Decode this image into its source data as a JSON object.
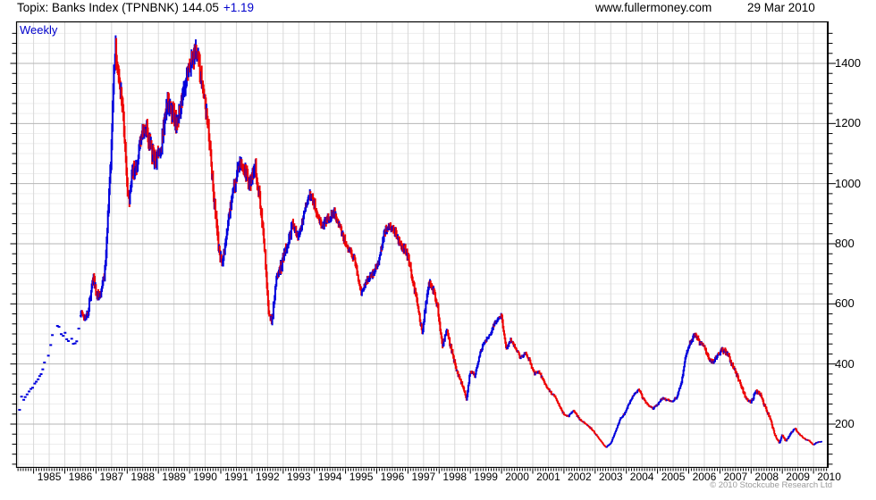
{
  "header": {
    "title": "Topix: Banks Index (TPNBNK) 144.05",
    "change": "+1.19",
    "website": "www.fullermoney.com",
    "date": "29 Mar 2010"
  },
  "chart": {
    "frequency_label": "Weekly",
    "footer_copyright": "© 2010 Stockcube Research Ltd"
  },
  "chart_data": {
    "type": "bar",
    "subtype": "weekly-high-low-range-bars",
    "title": "Topix: Banks Index (TPNBNK)",
    "last_price": 144.05,
    "change": 1.19,
    "frequency": "Weekly",
    "up_color": "#0000dd",
    "down_color": "#ee0000",
    "grid": true,
    "y_axis_side": "right",
    "y_ticks": [
      200,
      400,
      600,
      800,
      1000,
      1200,
      1400
    ],
    "y_major_step": 200,
    "y_minor_step": 33.3333,
    "ylim": [
      55,
      1540
    ],
    "x_labels": [
      "1985",
      "1986",
      "1987",
      "1988",
      "1989",
      "1990",
      "1991",
      "1992",
      "1993",
      "1994",
      "1995",
      "1996",
      "1997",
      "1998",
      "1999",
      "2000",
      "2001",
      "2002",
      "2003",
      "2004",
      "2005",
      "2006",
      "2007",
      "2008",
      "2009",
      "2010"
    ],
    "x_range_years": [
      1984.3,
      2010.45
    ],
    "x_data_start": 1984.55,
    "x_data_end": 2010.27,
    "sparse_until_year": 1986.5,
    "keypoints": [
      [
        1984.55,
        245
      ],
      [
        1984.62,
        300
      ],
      [
        1984.7,
        280
      ],
      [
        1984.78,
        297
      ],
      [
        1984.9,
        312
      ],
      [
        1985.0,
        330
      ],
      [
        1985.12,
        350
      ],
      [
        1985.24,
        362
      ],
      [
        1985.34,
        402
      ],
      [
        1985.44,
        412
      ],
      [
        1985.54,
        462
      ],
      [
        1985.62,
        505
      ],
      [
        1985.7,
        527
      ],
      [
        1985.82,
        520
      ],
      [
        1985.92,
        490
      ],
      [
        1986.0,
        500
      ],
      [
        1986.12,
        473
      ],
      [
        1986.2,
        488
      ],
      [
        1986.28,
        462
      ],
      [
        1986.4,
        482
      ],
      [
        1986.52,
        575
      ],
      [
        1986.62,
        550
      ],
      [
        1986.73,
        565
      ],
      [
        1986.84,
        640
      ],
      [
        1986.93,
        693
      ],
      [
        1987.03,
        622
      ],
      [
        1987.15,
        640
      ],
      [
        1987.28,
        700
      ],
      [
        1987.38,
        880
      ],
      [
        1987.48,
        1080
      ],
      [
        1987.57,
        1380
      ],
      [
        1987.63,
        1445
      ],
      [
        1987.7,
        1390
      ],
      [
        1987.8,
        1295
      ],
      [
        1987.9,
        1190
      ],
      [
        1988.0,
        1000
      ],
      [
        1988.06,
        930
      ],
      [
        1988.15,
        1030
      ],
      [
        1988.3,
        1060
      ],
      [
        1988.45,
        1150
      ],
      [
        1988.58,
        1195
      ],
      [
        1988.74,
        1125
      ],
      [
        1988.9,
        1070
      ],
      [
        1989.1,
        1125
      ],
      [
        1989.28,
        1280
      ],
      [
        1989.45,
        1235
      ],
      [
        1989.6,
        1200
      ],
      [
        1989.8,
        1320
      ],
      [
        1990.0,
        1395
      ],
      [
        1990.18,
        1445
      ],
      [
        1990.32,
        1390
      ],
      [
        1990.48,
        1280
      ],
      [
        1990.62,
        1160
      ],
      [
        1990.78,
        960
      ],
      [
        1990.95,
        765
      ],
      [
        1991.06,
        735
      ],
      [
        1991.2,
        845
      ],
      [
        1991.36,
        950
      ],
      [
        1991.5,
        1020
      ],
      [
        1991.64,
        1075
      ],
      [
        1991.8,
        1030
      ],
      [
        1991.95,
        1000
      ],
      [
        1992.1,
        1055
      ],
      [
        1992.25,
        950
      ],
      [
        1992.4,
        790
      ],
      [
        1992.54,
        565
      ],
      [
        1992.64,
        540
      ],
      [
        1992.8,
        700
      ],
      [
        1992.95,
        728
      ],
      [
        1993.1,
        790
      ],
      [
        1993.3,
        862
      ],
      [
        1993.5,
        820
      ],
      [
        1993.7,
        912
      ],
      [
        1993.85,
        970
      ],
      [
        1994.0,
        932
      ],
      [
        1994.22,
        855
      ],
      [
        1994.45,
        882
      ],
      [
        1994.64,
        906
      ],
      [
        1994.85,
        842
      ],
      [
        1995.05,
        790
      ],
      [
        1995.28,
        752
      ],
      [
        1995.5,
        636
      ],
      [
        1995.7,
        680
      ],
      [
        1995.9,
        702
      ],
      [
        1996.05,
        736
      ],
      [
        1996.25,
        842
      ],
      [
        1996.42,
        856
      ],
      [
        1996.6,
        832
      ],
      [
        1996.8,
        792
      ],
      [
        1997.0,
        762
      ],
      [
        1997.15,
        682
      ],
      [
        1997.3,
        602
      ],
      [
        1997.46,
        502
      ],
      [
        1997.6,
        622
      ],
      [
        1997.7,
        672
      ],
      [
        1997.84,
        640
      ],
      [
        1997.96,
        582
      ],
      [
        1998.1,
        456
      ],
      [
        1998.25,
        512
      ],
      [
        1998.4,
        446
      ],
      [
        1998.56,
        376
      ],
      [
        1998.74,
        332
      ],
      [
        1998.88,
        282
      ],
      [
        1999.0,
        380
      ],
      [
        1999.15,
        360
      ],
      [
        1999.3,
        432
      ],
      [
        1999.46,
        476
      ],
      [
        1999.62,
        492
      ],
      [
        1999.8,
        542
      ],
      [
        2000.0,
        560
      ],
      [
        2000.15,
        452
      ],
      [
        2000.3,
        480
      ],
      [
        2000.46,
        452
      ],
      [
        2000.6,
        422
      ],
      [
        2000.76,
        436
      ],
      [
        2000.9,
        412
      ],
      [
        2001.05,
        366
      ],
      [
        2001.2,
        376
      ],
      [
        2001.4,
        332
      ],
      [
        2001.56,
        306
      ],
      [
        2001.7,
        296
      ],
      [
        2001.85,
        262
      ],
      [
        2002.0,
        232
      ],
      [
        2002.15,
        226
      ],
      [
        2002.3,
        246
      ],
      [
        2002.5,
        216
      ],
      [
        2002.7,
        202
      ],
      [
        2002.9,
        182
      ],
      [
        2003.05,
        162
      ],
      [
        2003.2,
        140
      ],
      [
        2003.35,
        123
      ],
      [
        2003.5,
        136
      ],
      [
        2003.65,
        176
      ],
      [
        2003.8,
        216
      ],
      [
        2003.95,
        236
      ],
      [
        2004.1,
        272
      ],
      [
        2004.25,
        300
      ],
      [
        2004.4,
        316
      ],
      [
        2004.55,
        282
      ],
      [
        2004.7,
        262
      ],
      [
        2004.85,
        252
      ],
      [
        2005.0,
        266
      ],
      [
        2005.15,
        286
      ],
      [
        2005.3,
        280
      ],
      [
        2005.45,
        276
      ],
      [
        2005.6,
        286
      ],
      [
        2005.75,
        330
      ],
      [
        2005.9,
        422
      ],
      [
        2006.05,
        472
      ],
      [
        2006.2,
        498
      ],
      [
        2006.35,
        472
      ],
      [
        2006.5,
        456
      ],
      [
        2006.65,
        416
      ],
      [
        2006.8,
        406
      ],
      [
        2006.95,
        436
      ],
      [
        2007.1,
        446
      ],
      [
        2007.25,
        432
      ],
      [
        2007.4,
        396
      ],
      [
        2007.55,
        362
      ],
      [
        2007.7,
        322
      ],
      [
        2007.85,
        282
      ],
      [
        2008.0,
        272
      ],
      [
        2008.15,
        310
      ],
      [
        2008.3,
        300
      ],
      [
        2008.45,
        256
      ],
      [
        2008.6,
        222
      ],
      [
        2008.75,
        166
      ],
      [
        2008.9,
        136
      ],
      [
        2009.0,
        164
      ],
      [
        2009.1,
        142
      ],
      [
        2009.25,
        166
      ],
      [
        2009.4,
        186
      ],
      [
        2009.55,
        166
      ],
      [
        2009.7,
        152
      ],
      [
        2009.85,
        146
      ],
      [
        2010.0,
        131
      ],
      [
        2010.1,
        140
      ],
      [
        2010.27,
        144
      ]
    ]
  }
}
